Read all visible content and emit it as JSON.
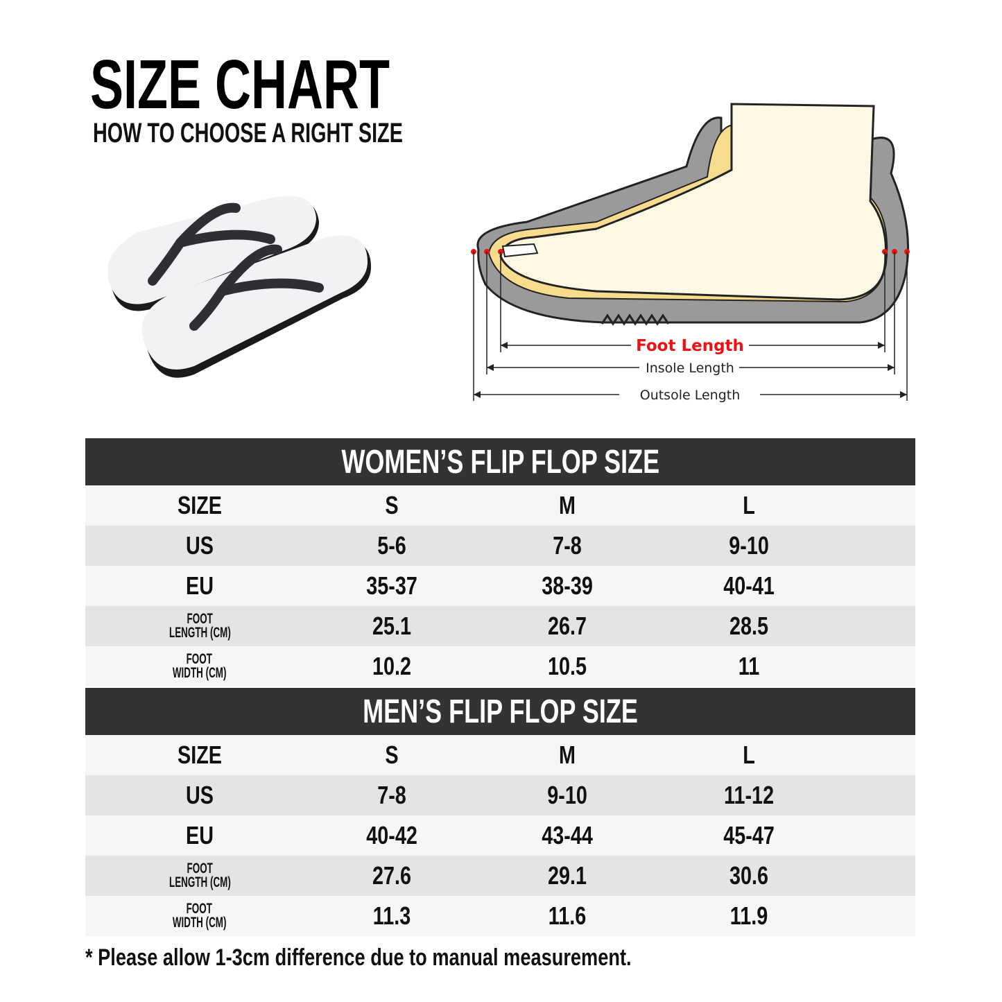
{
  "header": {
    "title": "SIZE CHART",
    "subtitle": "HOW TO CHOOSE A RIGHT SIZE"
  },
  "diagram": {
    "labels": {
      "foot_length": "Foot Length",
      "insole_length": "Insole Length",
      "outsole_length": "Outsole Length"
    },
    "colors": {
      "foot_length": "#ee1111",
      "sole": "#9a9a9a",
      "insole": "#f7dc8e",
      "foot": "#fdf8e3"
    }
  },
  "tables": [
    {
      "title": "WOMEN’S FLIP FLOP SIZE",
      "rows": [
        {
          "label": "SIZE",
          "values": [
            "S",
            "M",
            "L"
          ]
        },
        {
          "label": "US",
          "values": [
            "5-6",
            "7-8",
            "9-10"
          ]
        },
        {
          "label": "EU",
          "values": [
            "35-37",
            "38-39",
            "40-41"
          ]
        },
        {
          "label": "FOOT LENGTH (CM)",
          "label_l1": "FOOT",
          "label_l2": "LENGTH (CM)",
          "values": [
            "25.1",
            "26.7",
            "28.5"
          ]
        },
        {
          "label": "FOOT WIDTH (CM)",
          "label_l1": "FOOT",
          "label_l2": "WIDTH (CM)",
          "values": [
            "10.2",
            "10.5",
            "11"
          ]
        }
      ]
    },
    {
      "title": "MEN’S FLIP FLOP SIZE",
      "rows": [
        {
          "label": "SIZE",
          "values": [
            "S",
            "M",
            "L"
          ]
        },
        {
          "label": "US",
          "values": [
            "7-8",
            "9-10",
            "11-12"
          ]
        },
        {
          "label": "EU",
          "values": [
            "40-42",
            "43-44",
            "45-47"
          ]
        },
        {
          "label": "FOOT LENGTH (CM)",
          "label_l1": "FOOT",
          "label_l2": "LENGTH (CM)",
          "values": [
            "27.6",
            "29.1",
            "30.6"
          ]
        },
        {
          "label": "FOOT WIDTH (CM)",
          "label_l1": "FOOT",
          "label_l2": "WIDTH (CM)",
          "values": [
            "11.3",
            "11.6",
            "11.9"
          ]
        }
      ]
    }
  ],
  "footnote": "* Please allow 1-3cm difference due to manual measurement."
}
